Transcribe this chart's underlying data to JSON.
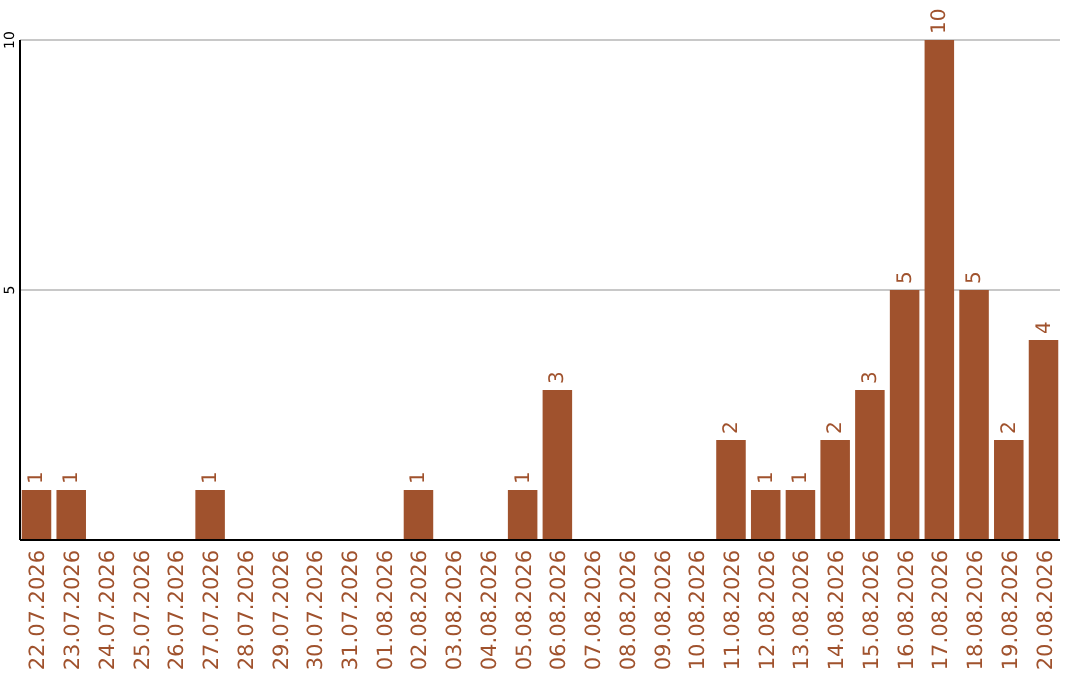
{
  "chart_data": {
    "type": "bar",
    "categories": [
      "22.07.2026",
      "23.07.2026",
      "24.07.2026",
      "25.07.2026",
      "26.07.2026",
      "27.07.2026",
      "28.07.2026",
      "29.07.2026",
      "30.07.2026",
      "31.07.2026",
      "01.08.2026",
      "02.08.2026",
      "03.08.2026",
      "04.08.2026",
      "05.08.2026",
      "06.08.2026",
      "07.08.2026",
      "08.08.2026",
      "09.08.2026",
      "10.08.2026",
      "11.08.2026",
      "12.08.2026",
      "13.08.2026",
      "14.08.2026",
      "15.08.2026",
      "16.08.2026",
      "17.08.2026",
      "18.08.2026",
      "19.08.2026",
      "20.08.2026"
    ],
    "values": [
      1,
      1,
      0,
      0,
      0,
      1,
      0,
      0,
      0,
      0,
      0,
      1,
      0,
      0,
      1,
      3,
      0,
      0,
      0,
      0,
      2,
      1,
      1,
      2,
      3,
      5,
      10,
      5,
      2,
      4
    ],
    "value_labels": [
      "1",
      "1",
      null,
      null,
      null,
      "1",
      null,
      null,
      null,
      null,
      null,
      "1",
      null,
      null,
      "1",
      "3",
      null,
      null,
      null,
      null,
      "2",
      "1",
      "1",
      "2",
      "3",
      "5",
      "10",
      "5",
      "2",
      "4"
    ],
    "color": "#a0522d",
    "ylim": [
      0,
      10
    ],
    "yticks": [
      5,
      10
    ],
    "grid": "y"
  }
}
